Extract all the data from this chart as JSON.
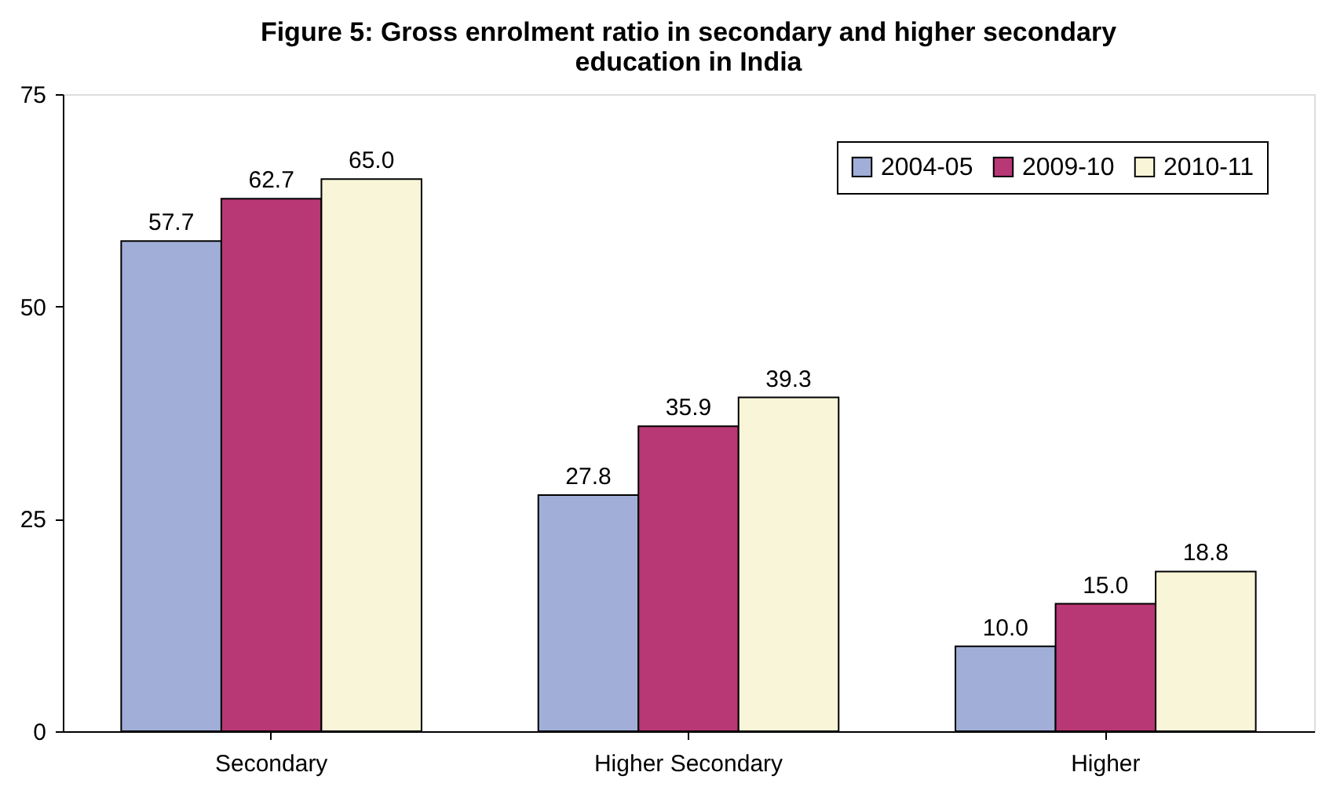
{
  "chart_data": {
    "type": "bar",
    "title": "Figure 5: Gross enrolment ratio in secondary and higher secondary education in India",
    "categories": [
      "Secondary",
      "Higher Secondary",
      "Higher"
    ],
    "series": [
      {
        "name": "2004-05",
        "color": "#a0aed8",
        "values": [
          57.7,
          27.8,
          10.0
        ]
      },
      {
        "name": "2009-10",
        "color": "#b83775",
        "values": [
          62.7,
          35.9,
          15.0
        ]
      },
      {
        "name": "2010-11",
        "color": "#f9f5d8",
        "values": [
          65.0,
          39.3,
          18.8
        ]
      }
    ],
    "ylim": [
      0,
      75
    ],
    "yticks": [
      0,
      25,
      50,
      75
    ],
    "grid": false,
    "legend": "top right",
    "value_labels": [
      [
        "57.7",
        "27.8",
        "10.0"
      ],
      [
        "62.7",
        "35.9",
        "15.0"
      ],
      [
        "65.0",
        "39.3",
        "18.8"
      ]
    ]
  }
}
